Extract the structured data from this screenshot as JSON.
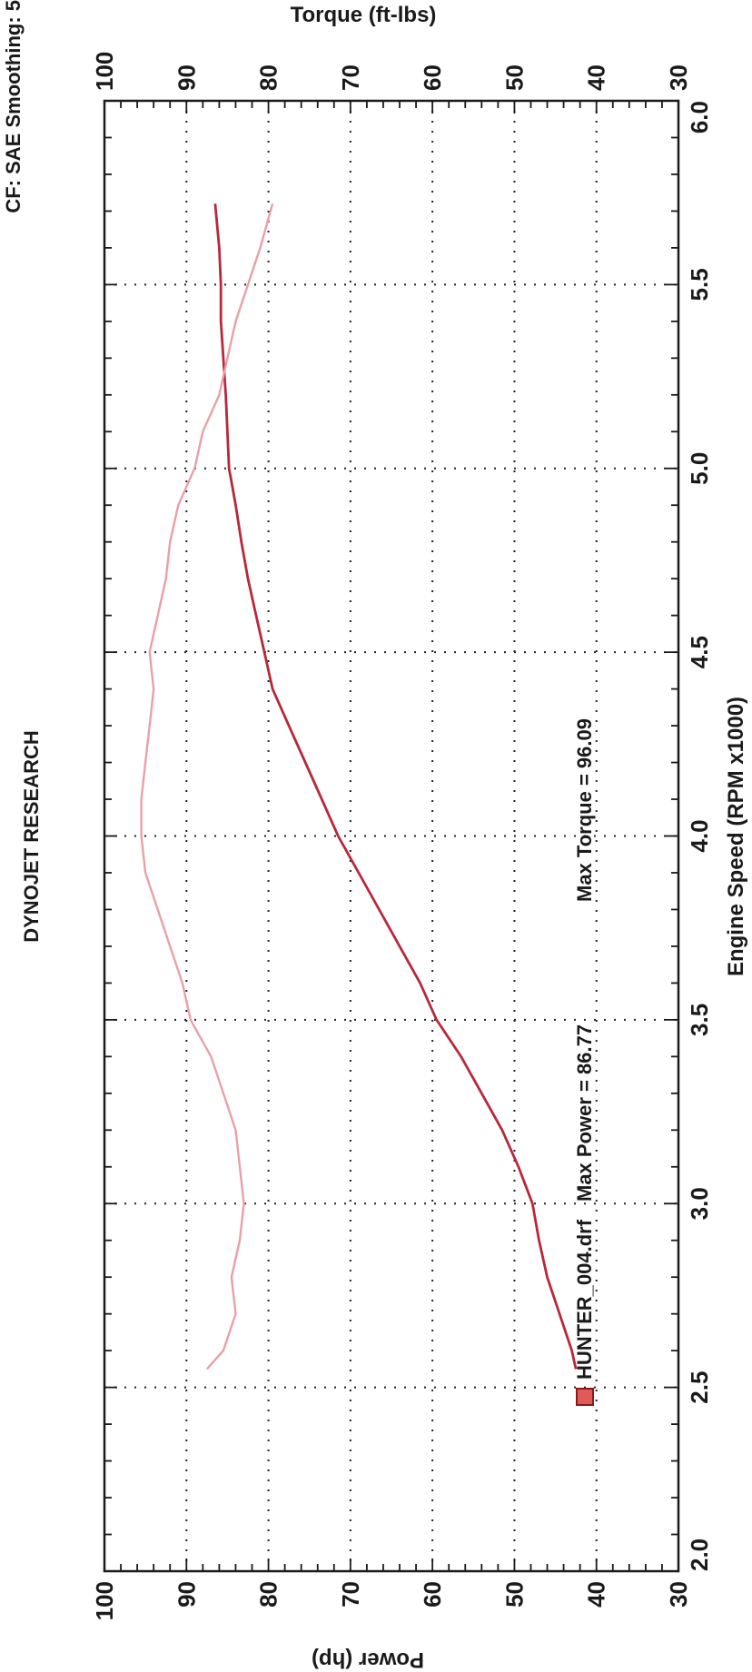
{
  "chart_data": {
    "type": "line",
    "title": "DYNOJET RESEARCH",
    "subtitle": "CF: SAE  Smoothing: 5",
    "xlabel": "Engine Speed (RPM x1000)",
    "ylabel": "Power (hp)",
    "y2label": "Torque (ft-lbs)",
    "xlim": [
      2.0,
      6.0
    ],
    "ylim": [
      30,
      100
    ],
    "y2lim": [
      30,
      100
    ],
    "x_ticks": [
      "2.0",
      "2.5",
      "3.0",
      "3.5",
      "4.0",
      "4.5",
      "5.0",
      "5.5",
      "6.0"
    ],
    "y_ticks": [
      "30",
      "40",
      "50",
      "60",
      "70",
      "80",
      "90",
      "100"
    ],
    "y2_ticks": [
      "30",
      "40",
      "50",
      "60",
      "70",
      "80",
      "90",
      "100"
    ],
    "grid": true,
    "legend": {
      "run": "HUNTER_004.drf",
      "max_power_label": "Max Power = 86.77",
      "max_torque_label": "Max Torque = 96.09",
      "color": "#e05a5a"
    },
    "series": [
      {
        "key": "power",
        "color": "#b8283a",
        "axis": "left",
        "x": [
          2.55,
          2.6,
          2.7,
          2.8,
          2.9,
          3.0,
          3.1,
          3.2,
          3.3,
          3.4,
          3.5,
          3.6,
          3.7,
          3.8,
          3.9,
          4.0,
          4.1,
          4.2,
          4.3,
          4.4,
          4.5,
          4.6,
          4.7,
          4.8,
          4.9,
          5.0,
          5.1,
          5.2,
          5.3,
          5.4,
          5.5,
          5.6,
          5.72
        ],
        "values": [
          42.5,
          43.0,
          44.5,
          46.0,
          47.0,
          47.8,
          49.5,
          51.5,
          54.0,
          56.5,
          59.5,
          61.5,
          64.0,
          66.5,
          69.0,
          71.5,
          73.5,
          75.5,
          77.5,
          79.5,
          80.5,
          81.5,
          82.5,
          83.3,
          84.0,
          84.8,
          85.0,
          85.2,
          85.5,
          85.8,
          85.8,
          86.0,
          86.5
        ]
      },
      {
        "key": "torque",
        "color": "#e8a0a8",
        "axis": "right",
        "x": [
          2.55,
          2.6,
          2.7,
          2.8,
          2.9,
          3.0,
          3.1,
          3.2,
          3.3,
          3.4,
          3.5,
          3.6,
          3.7,
          3.8,
          3.9,
          4.0,
          4.1,
          4.2,
          4.3,
          4.4,
          4.5,
          4.6,
          4.7,
          4.8,
          4.9,
          5.0,
          5.1,
          5.2,
          5.3,
          5.4,
          5.5,
          5.6,
          5.72
        ],
        "values": [
          87.5,
          85.5,
          84.0,
          84.5,
          83.5,
          83.0,
          83.5,
          84.0,
          85.5,
          87.0,
          89.5,
          90.5,
          92.0,
          93.5,
          95.0,
          95.5,
          95.5,
          95.0,
          94.5,
          94.0,
          94.5,
          93.5,
          92.5,
          92.0,
          91.0,
          89.0,
          88.0,
          86.0,
          85.0,
          84.0,
          82.5,
          81.0,
          79.5
        ]
      }
    ]
  }
}
